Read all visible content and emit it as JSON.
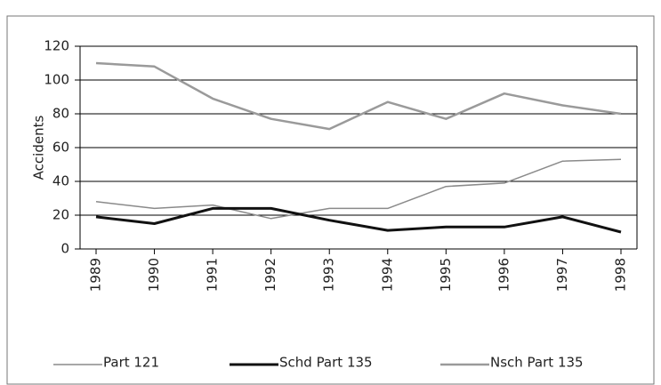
{
  "chart_data": {
    "type": "line",
    "y_label": "Accidents",
    "categories": [
      "1989",
      "1990",
      "1991",
      "1992",
      "1993",
      "1994",
      "1995",
      "1996",
      "1997",
      "1998"
    ],
    "series": [
      {
        "name": "Part 121",
        "color": "#8a8a8a",
        "width": 1.5,
        "values": [
          28,
          24,
          26,
          18,
          24,
          24,
          37,
          39,
          52,
          53
        ]
      },
      {
        "name": "Schd Part 135",
        "color": "#111111",
        "width": 3,
        "values": [
          19,
          15,
          24,
          24,
          17,
          11,
          13,
          13,
          19,
          10
        ]
      },
      {
        "name": "Nsch Part 135",
        "color": "#9a9a9a",
        "width": 2.5,
        "values": [
          110,
          108,
          89,
          77,
          71,
          87,
          77,
          92,
          85,
          80
        ]
      }
    ],
    "ylim": [
      0,
      120
    ],
    "yticks": [
      0,
      20,
      40,
      60,
      80,
      100,
      120
    ],
    "grid": true
  }
}
